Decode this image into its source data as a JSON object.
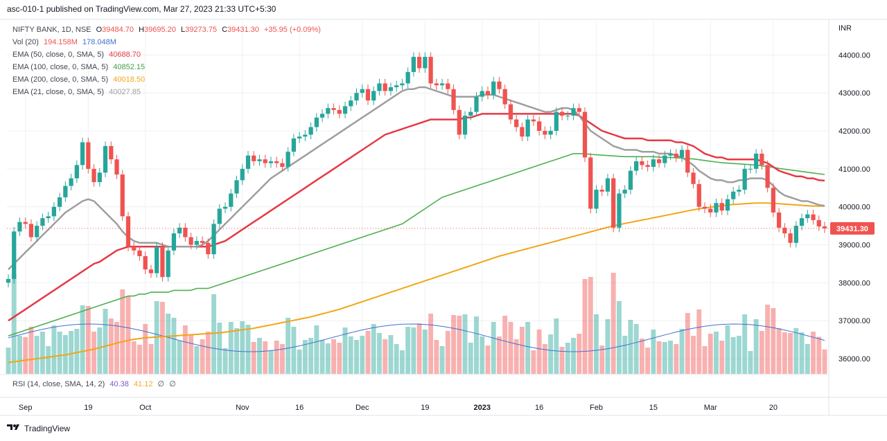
{
  "header": {
    "text": "asc-010-1 published on TradingView.com, Mar 27, 2023 21:33 UTC+5:30"
  },
  "legend": {
    "symbol": "NIFTY BANK, 1D, NSE",
    "ohlc": {
      "o_label": "O",
      "o": "39484.70",
      "h_label": "H",
      "h": "39695.20",
      "l_label": "L",
      "l": "39273.75",
      "c_label": "C",
      "c": "39431.30",
      "change": "+35.95 (+0.09%)"
    },
    "vol": {
      "label": "Vol (20)",
      "v1": "194.158M",
      "v2": "178.048M"
    },
    "ema50": {
      "label": "EMA (50, close, 0, SMA, 5)",
      "value": "40688.70"
    },
    "ema100": {
      "label": "EMA (100, close, 0, SMA, 5)",
      "value": "40852.15"
    },
    "ema200": {
      "label": "EMA (200, close, 0, SMA, 5)",
      "value": "40018.50"
    },
    "ema21": {
      "label": "EMA (21, close, 0, SMA, 5)",
      "value": "40027.85"
    }
  },
  "rsi": {
    "label": "RSI (14, close, SMA, 14, 2)",
    "v1": "40.38",
    "v2": "41.12",
    "v3": "∅",
    "v4": "∅"
  },
  "footer": {
    "brand": "TradingView"
  },
  "colors": {
    "up": "#26a69a",
    "down": "#ef5350",
    "ema21": "#9e9e9e",
    "ema50": "#e53945",
    "ema100": "#4caf50",
    "ema200": "#f2a516",
    "vol_ma": "#3f6fd1",
    "grid": "#eef0f3"
  },
  "chart_data": {
    "type": "candlestick",
    "title": "NIFTY BANK, 1D, NSE",
    "currency_label": "INR",
    "last_price_label": "39431.30",
    "y_ticks": [
      44000,
      43000,
      42000,
      41000,
      40000,
      39000,
      38000,
      37000,
      36000
    ],
    "y_tick_labels": [
      "44000.00",
      "43000.00",
      "42000.00",
      "41000.00",
      "40000.00",
      "39000.00",
      "38000.00",
      "37000.00",
      "36000.00"
    ],
    "ylim": [
      35600,
      44900
    ],
    "x_ticks": [
      {
        "i": 3,
        "label": "Sep"
      },
      {
        "i": 14,
        "label": "19"
      },
      {
        "i": 24,
        "label": "Oct"
      },
      {
        "i": 41,
        "label": "Nov"
      },
      {
        "i": 51,
        "label": "16"
      },
      {
        "i": 62,
        "label": "Dec"
      },
      {
        "i": 73,
        "label": "19"
      },
      {
        "i": 83,
        "label": "2023"
      },
      {
        "i": 93,
        "label": "16"
      },
      {
        "i": 103,
        "label": "Feb"
      },
      {
        "i": 113,
        "label": "15"
      },
      {
        "i": 123,
        "label": "Mar"
      },
      {
        "i": 134,
        "label": "20"
      }
    ],
    "candle_close": [
      38100,
      39350,
      39600,
      39550,
      39200,
      39500,
      39700,
      39750,
      40000,
      40250,
      40550,
      40750,
      41100,
      41700,
      41000,
      40650,
      40900,
      41600,
      41250,
      40850,
      39750,
      38950,
      38850,
      38700,
      38350,
      38250,
      38950,
      38150,
      38850,
      39300,
      39450,
      39200,
      39000,
      39100,
      39050,
      38750,
      39550,
      39950,
      40000,
      40350,
      40700,
      41000,
      41350,
      41200,
      41250,
      41150,
      41200,
      41150,
      41050,
      41450,
      41800,
      41850,
      41900,
      42100,
      42350,
      42450,
      42600,
      42550,
      42450,
      42650,
      42800,
      43000,
      43100,
      42800,
      43050,
      43250,
      43050,
      43150,
      43200,
      43250,
      43550,
      43950,
      43650,
      43950,
      43250,
      43200,
      43250,
      43100,
      42550,
      41900,
      42400,
      42500,
      42900,
      43050,
      42950,
      43300,
      43100,
      42700,
      42300,
      42100,
      41850,
      42300,
      42250,
      42000,
      41900,
      42000,
      42500,
      42400,
      42400,
      42600,
      42500,
      41300,
      39950,
      40450,
      40400,
      40750,
      39450,
      40350,
      40450,
      40950,
      41200,
      41100,
      41050,
      41250,
      41150,
      41350,
      41400,
      41300,
      41500,
      40900,
      40600,
      40000,
      39950,
      39850,
      40100,
      39900,
      40200,
      40400,
      40450,
      41000,
      41000,
      41400,
      41100,
      40500,
      39850,
      39450,
      39300,
      39050,
      39500,
      39700,
      39800,
      39650,
      39480,
      39431.3
    ],
    "candle_open": [
      38000,
      38100,
      39350,
      39600,
      39550,
      39200,
      39500,
      39700,
      39750,
      40000,
      40250,
      40550,
      40750,
      41100,
      41700,
      41000,
      40650,
      40900,
      41600,
      41250,
      40850,
      39750,
      38950,
      38850,
      38700,
      38350,
      38250,
      38950,
      38150,
      38850,
      39300,
      39450,
      39200,
      39000,
      39100,
      39050,
      38750,
      39550,
      39950,
      40000,
      40350,
      40700,
      41000,
      41350,
      41200,
      41250,
      41150,
      41200,
      41150,
      41050,
      41450,
      41800,
      41850,
      41900,
      42100,
      42350,
      42450,
      42600,
      42550,
      42450,
      42650,
      42800,
      43000,
      43100,
      42800,
      43050,
      43250,
      43050,
      43150,
      43200,
      43250,
      43550,
      43950,
      43650,
      43950,
      43250,
      43200,
      43250,
      43100,
      42550,
      41900,
      42400,
      42500,
      42900,
      43050,
      42950,
      43300,
      43100,
      42700,
      42300,
      42100,
      41850,
      42300,
      42250,
      42000,
      41900,
      42000,
      42500,
      42400,
      42400,
      42600,
      42500,
      41300,
      39950,
      40450,
      40400,
      40750,
      39450,
      40350,
      40450,
      40950,
      41200,
      41100,
      41050,
      41250,
      41150,
      41350,
      41400,
      41300,
      41500,
      40900,
      40600,
      40000,
      39950,
      39850,
      40100,
      39900,
      40200,
      40400,
      40450,
      41000,
      41000,
      41400,
      41100,
      40500,
      39850,
      39450,
      39300,
      39050,
      39500,
      39700,
      39800,
      39650,
      39484.7
    ],
    "ema21": [
      38350,
      38500,
      38650,
      38800,
      38950,
      39100,
      39250,
      39400,
      39550,
      39700,
      39850,
      39950,
      40050,
      40150,
      40200,
      40150,
      40000,
      39850,
      39700,
      39550,
      39350,
      39200,
      39100,
      39050,
      39050,
      39050,
      39050,
      39000,
      38950,
      38950,
      38950,
      38950,
      38950,
      38950,
      39000,
      39100,
      39250,
      39400,
      39550,
      39700,
      39850,
      40000,
      40150,
      40300,
      40450,
      40600,
      40750,
      40850,
      40950,
      41050,
      41150,
      41250,
      41350,
      41450,
      41550,
      41650,
      41750,
      41850,
      41950,
      42050,
      42150,
      42250,
      42350,
      42450,
      42550,
      42650,
      42750,
      42850,
      42950,
      43050,
      43100,
      43100,
      43150,
      43150,
      43100,
      43050,
      43000,
      42950,
      42900,
      42900,
      42900,
      42900,
      42900,
      42950,
      42950,
      42950,
      42900,
      42850,
      42800,
      42750,
      42700,
      42650,
      42600,
      42550,
      42500,
      42500,
      42550,
      42600,
      42600,
      42550,
      42400,
      42200,
      42000,
      41900,
      41800,
      41700,
      41600,
      41550,
      41500,
      41500,
      41500,
      41450,
      41450,
      41450,
      41400,
      41400,
      41400,
      41350,
      41300,
      41200,
      41100,
      40950,
      40850,
      40750,
      40700,
      40700,
      40650,
      40650,
      40700,
      40700,
      40750,
      40750,
      40750,
      40700,
      40550,
      40400,
      40300,
      40250,
      40200,
      40150,
      40150,
      40100,
      40050,
      40028
    ],
    "ema50": [
      37000,
      37100,
      37200,
      37300,
      37400,
      37500,
      37600,
      37700,
      37800,
      37900,
      38000,
      38100,
      38200,
      38300,
      38400,
      38500,
      38550,
      38650,
      38750,
      38850,
      38900,
      38950,
      38950,
      38950,
      38950,
      38950,
      38950,
      38950,
      38950,
      38950,
      38950,
      38950,
      38950,
      38950,
      38950,
      38950,
      39000,
      39050,
      39100,
      39200,
      39300,
      39400,
      39500,
      39600,
      39700,
      39800,
      39900,
      40000,
      40100,
      40200,
      40300,
      40400,
      40500,
      40600,
      40700,
      40800,
      40900,
      41000,
      41100,
      41200,
      41300,
      41400,
      41500,
      41600,
      41700,
      41800,
      41900,
      41950,
      42000,
      42050,
      42100,
      42150,
      42200,
      42250,
      42300,
      42300,
      42300,
      42300,
      42300,
      42300,
      42350,
      42350,
      42400,
      42450,
      42450,
      42450,
      42450,
      42450,
      42450,
      42450,
      42450,
      42450,
      42450,
      42450,
      42450,
      42450,
      42450,
      42450,
      42450,
      42450,
      42400,
      42300,
      42200,
      42100,
      42000,
      41950,
      41900,
      41850,
      41800,
      41800,
      41800,
      41800,
      41750,
      41750,
      41750,
      41750,
      41750,
      41700,
      41700,
      41650,
      41600,
      41500,
      41400,
      41350,
      41300,
      41300,
      41250,
      41250,
      41250,
      41250,
      41250,
      41250,
      41200,
      41150,
      41050,
      40950,
      40900,
      40850,
      40800,
      40800,
      40750,
      40750,
      40700,
      40689
    ],
    "ema100": [
      36600,
      36650,
      36700,
      36750,
      36800,
      36850,
      36900,
      36950,
      37000,
      37050,
      37100,
      37150,
      37200,
      37250,
      37300,
      37350,
      37400,
      37450,
      37500,
      37550,
      37600,
      37650,
      37650,
      37700,
      37700,
      37750,
      37750,
      37750,
      37750,
      37800,
      37800,
      37800,
      37800,
      37850,
      37850,
      37850,
      37900,
      37950,
      38000,
      38050,
      38100,
      38150,
      38200,
      38250,
      38300,
      38350,
      38400,
      38450,
      38500,
      38550,
      38600,
      38650,
      38700,
      38750,
      38800,
      38850,
      38900,
      38950,
      39000,
      39050,
      39100,
      39150,
      39200,
      39250,
      39300,
      39350,
      39400,
      39450,
      39500,
      39550,
      39650,
      39750,
      39850,
      39950,
      40050,
      40150,
      40250,
      40300,
      40350,
      40400,
      40450,
      40500,
      40550,
      40600,
      40650,
      40700,
      40750,
      40800,
      40850,
      40900,
      40950,
      41000,
      41050,
      41100,
      41150,
      41200,
      41250,
      41300,
      41350,
      41400,
      41400,
      41400,
      41380,
      41370,
      41360,
      41350,
      41340,
      41330,
      41320,
      41320,
      41320,
      41320,
      41320,
      41320,
      41310,
      41300,
      41300,
      41290,
      41280,
      41270,
      41260,
      41240,
      41220,
      41200,
      41180,
      41160,
      41150,
      41140,
      41130,
      41120,
      41110,
      41100,
      41080,
      41060,
      41040,
      41010,
      40990,
      40970,
      40950,
      40930,
      40910,
      40890,
      40870,
      40852
    ],
    "ema200": [
      35900,
      35920,
      35940,
      35960,
      35980,
      36000,
      36020,
      36040,
      36060,
      36080,
      36100,
      36130,
      36160,
      36190,
      36220,
      36250,
      36290,
      36330,
      36370,
      36410,
      36450,
      36480,
      36510,
      36530,
      36550,
      36560,
      36570,
      36580,
      36590,
      36600,
      36610,
      36620,
      36630,
      36640,
      36650,
      36660,
      36670,
      36680,
      36700,
      36720,
      36740,
      36760,
      36780,
      36800,
      36830,
      36860,
      36890,
      36920,
      36950,
      36980,
      37010,
      37040,
      37070,
      37100,
      37140,
      37180,
      37220,
      37260,
      37300,
      37350,
      37400,
      37450,
      37500,
      37550,
      37600,
      37650,
      37700,
      37750,
      37800,
      37850,
      37900,
      37950,
      38000,
      38050,
      38100,
      38150,
      38200,
      38250,
      38300,
      38350,
      38400,
      38450,
      38500,
      38550,
      38600,
      38650,
      38700,
      38740,
      38780,
      38820,
      38860,
      38900,
      38940,
      38980,
      39020,
      39060,
      39100,
      39140,
      39180,
      39220,
      39260,
      39300,
      39340,
      39380,
      39420,
      39460,
      39500,
      39530,
      39560,
      39590,
      39620,
      39650,
      39680,
      39710,
      39740,
      39770,
      39800,
      39830,
      39860,
      39890,
      39920,
      39950,
      39970,
      39990,
      40010,
      40030,
      40050,
      40060,
      40070,
      40080,
      40090,
      40100,
      40100,
      40100,
      40090,
      40080,
      40070,
      40060,
      40050,
      40040,
      40030,
      40020,
      40020,
      40019
    ]
  }
}
